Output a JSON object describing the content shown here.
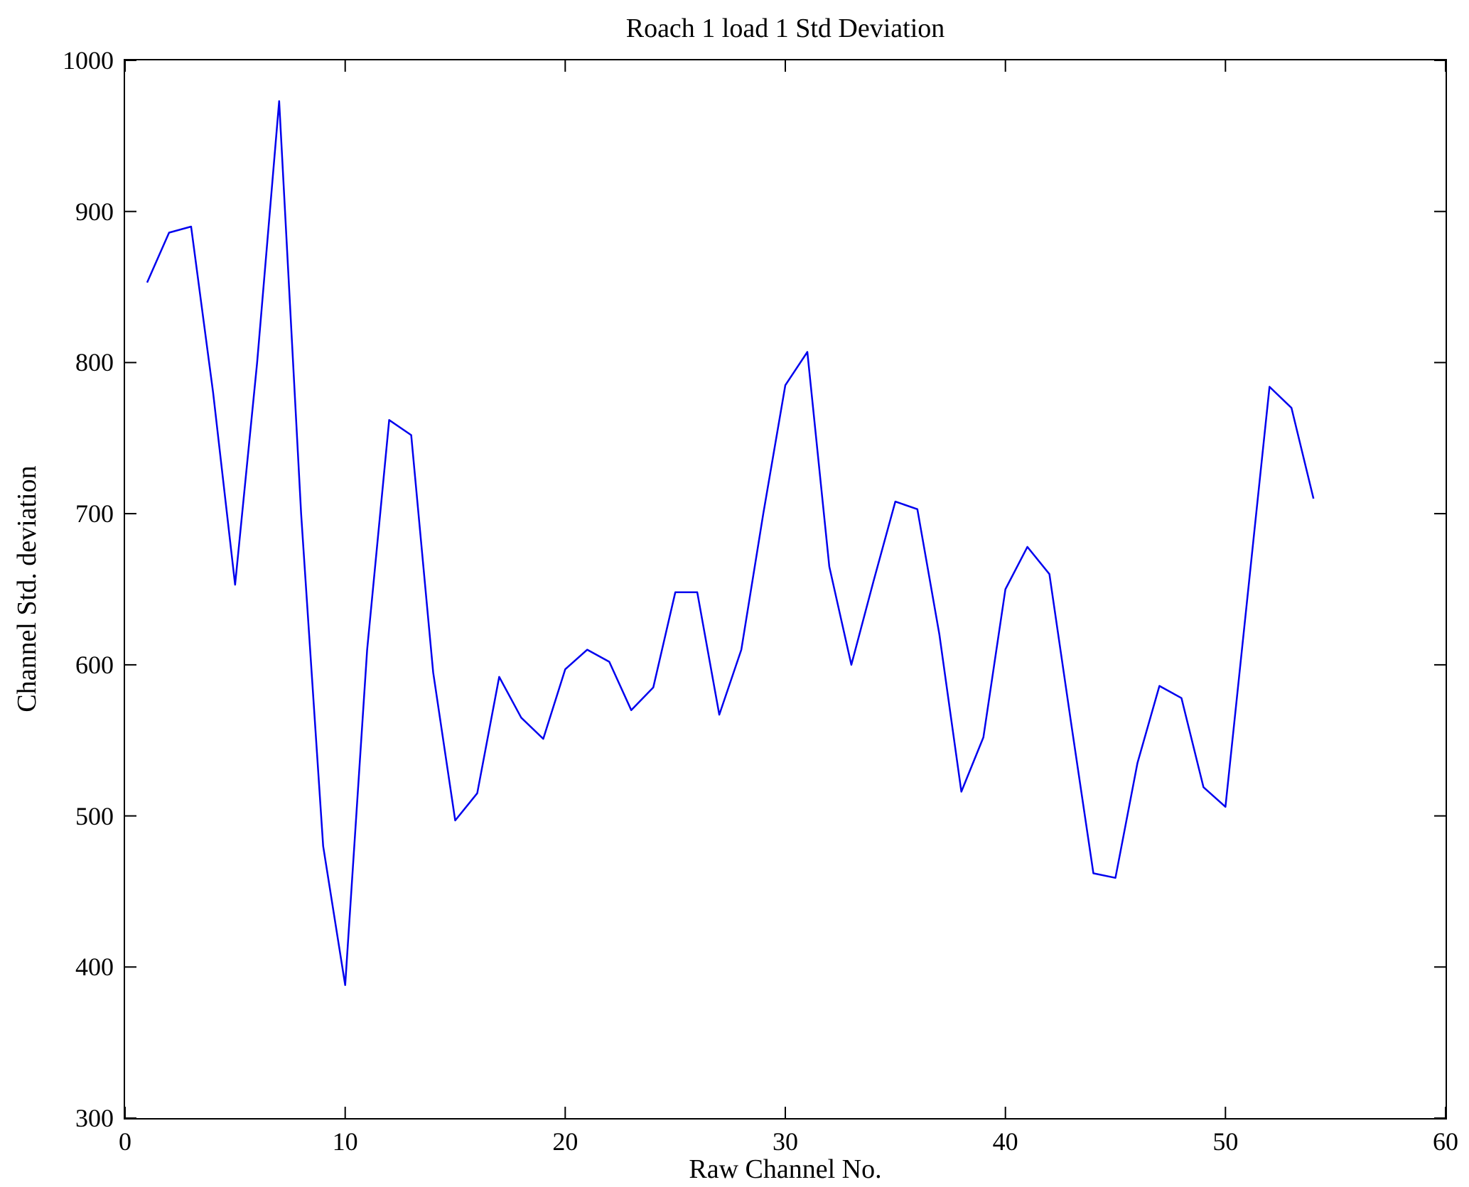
{
  "chart_data": {
    "type": "line",
    "title": "Roach 1 load 1 Std Deviation",
    "xlabel": "Raw Channel No.",
    "ylabel": "Channel Std. deviation",
    "xlim": [
      0,
      60
    ],
    "ylim": [
      300,
      1000
    ],
    "xticks": [
      0,
      10,
      20,
      30,
      40,
      50,
      60
    ],
    "yticks": [
      300,
      400,
      500,
      600,
      700,
      800,
      900,
      1000
    ],
    "grid": false,
    "legend_position": "none",
    "line_color": "#0000ee",
    "series": [
      {
        "name": "Channel Std. deviation",
        "color": "#0000ee",
        "x": [
          1,
          2,
          3,
          4,
          5,
          6,
          7,
          8,
          9,
          10,
          11,
          12,
          13,
          14,
          15,
          16,
          17,
          18,
          19,
          20,
          21,
          22,
          23,
          24,
          25,
          26,
          27,
          28,
          29,
          30,
          31,
          32,
          33,
          34,
          35,
          36,
          37,
          38,
          39,
          40,
          41,
          42,
          43,
          44,
          45,
          46,
          47,
          48,
          49,
          50,
          51,
          52,
          53,
          54
        ],
        "y": [
          853,
          886,
          890,
          780,
          653,
          800,
          973,
          700,
          480,
          388,
          610,
          762,
          752,
          595,
          497,
          515,
          592,
          565,
          551,
          597,
          610,
          602,
          570,
          585,
          648,
          648,
          567,
          610,
          700,
          785,
          807,
          665,
          600,
          655,
          708,
          703,
          620,
          516,
          552,
          650,
          678,
          660,
          560,
          462,
          459,
          535,
          586,
          578,
          519,
          506,
          645,
          784,
          770,
          710
        ]
      }
    ]
  }
}
